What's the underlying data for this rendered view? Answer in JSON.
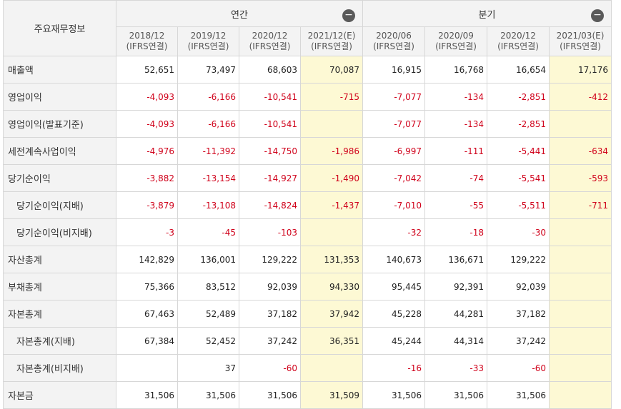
{
  "corner_label": "주요재무정보",
  "groups": [
    {
      "label": "연간",
      "button": "−"
    },
    {
      "label": "분기",
      "button": "−"
    }
  ],
  "periods": [
    {
      "date": "2018/12",
      "type": "(IFRS연결)"
    },
    {
      "date": "2019/12",
      "type": "(IFRS연결)"
    },
    {
      "date": "2020/12",
      "type": "(IFRS연결)"
    },
    {
      "date": "2021/12(E)",
      "type": "(IFRS연결)"
    },
    {
      "date": "2020/06",
      "type": "(IFRS연결)"
    },
    {
      "date": "2020/09",
      "type": "(IFRS연결)"
    },
    {
      "date": "2020/12",
      "type": "(IFRS연결)"
    },
    {
      "date": "2021/03(E)",
      "type": "(IFRS연결)"
    }
  ],
  "rows": [
    {
      "label": "매출액",
      "values": [
        "52,651",
        "73,497",
        "68,603",
        "70,087",
        "16,915",
        "16,768",
        "16,654",
        "17,176"
      ]
    },
    {
      "label": "영업이익",
      "values": [
        "-4,093",
        "-6,166",
        "-10,541",
        "-715",
        "-7,077",
        "-134",
        "-2,851",
        "-412"
      ]
    },
    {
      "label": "영업이익(발표기준)",
      "values": [
        "-4,093",
        "-6,166",
        "-10,541",
        "",
        "-7,077",
        "-134",
        "-2,851",
        ""
      ]
    },
    {
      "label": "세전계속사업이익",
      "values": [
        "-4,976",
        "-11,392",
        "-14,750",
        "-1,986",
        "-6,997",
        "-111",
        "-5,441",
        "-634"
      ]
    },
    {
      "label": "당기순이익",
      "values": [
        "-3,882",
        "-13,154",
        "-14,927",
        "-1,490",
        "-7,042",
        "-74",
        "-5,541",
        "-593"
      ]
    },
    {
      "label": "당기순이익(지배)",
      "values": [
        "-3,879",
        "-13,108",
        "-14,824",
        "-1,437",
        "-7,010",
        "-55",
        "-5,511",
        "-711"
      ]
    },
    {
      "label": "당기순이익(비지배)",
      "values": [
        "-3",
        "-45",
        "-103",
        "",
        "-32",
        "-18",
        "-30",
        ""
      ]
    },
    {
      "label": "자산총계",
      "values": [
        "142,829",
        "136,001",
        "129,222",
        "131,353",
        "140,673",
        "136,671",
        "129,222",
        ""
      ]
    },
    {
      "label": "부채총계",
      "values": [
        "75,366",
        "83,512",
        "92,039",
        "94,330",
        "95,445",
        "92,391",
        "92,039",
        ""
      ]
    },
    {
      "label": "자본총계",
      "values": [
        "67,463",
        "52,489",
        "37,182",
        "37,942",
        "45,228",
        "44,281",
        "37,182",
        ""
      ]
    },
    {
      "label": "자본총계(지배)",
      "values": [
        "67,384",
        "52,452",
        "37,242",
        "36,351",
        "45,244",
        "44,314",
        "37,242",
        ""
      ]
    },
    {
      "label": "자본총계(비지배)",
      "values": [
        "",
        "37",
        "-60",
        "",
        "-16",
        "-33",
        "-60",
        ""
      ]
    },
    {
      "label": "자본금",
      "values": [
        "31,506",
        "31,506",
        "31,506",
        "31,509",
        "31,506",
        "31,506",
        "31,506",
        ""
      ]
    }
  ]
}
